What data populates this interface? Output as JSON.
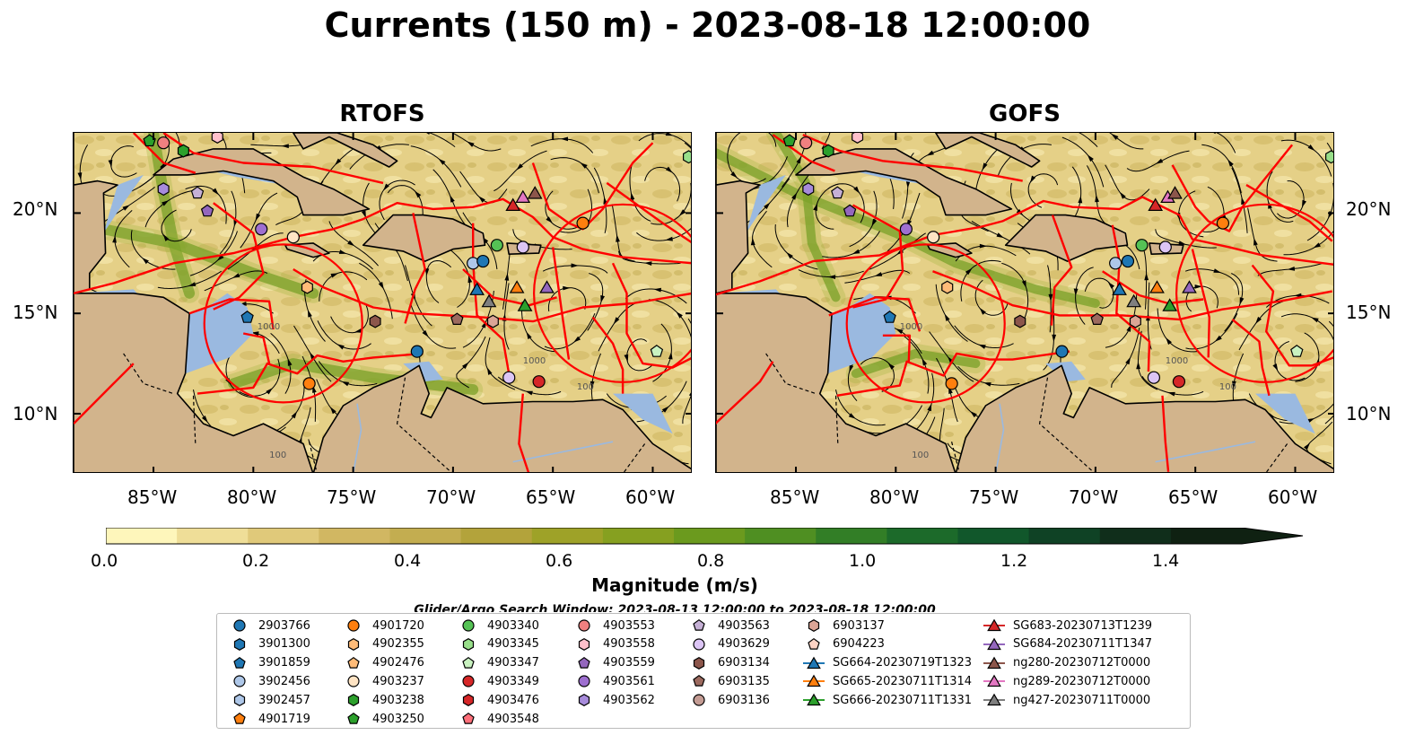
{
  "figure": {
    "title": "Currents (150 m) - 2023-08-18 12:00:00",
    "panels": [
      {
        "title": "RTOFS"
      },
      {
        "title": "GOFS"
      }
    ]
  },
  "map": {
    "lon_range": [
      -89,
      -58
    ],
    "lat_range": [
      7,
      24
    ],
    "lat_ticks": [
      "20°N",
      "15°N",
      "10°N"
    ],
    "lon_ticks": [
      "85°W",
      "80°W",
      "75°W",
      "70°W",
      "65°W",
      "60°W"
    ],
    "contour_labels": [
      "100",
      "1000"
    ],
    "colors": {
      "land": "#d2b48c",
      "shallow_sea": "#9ab9e0",
      "boundaries": "#ff0000",
      "streamlines": "#000000"
    }
  },
  "colorbar": {
    "title": "Magnitude (m/s)",
    "ticks": [
      "0.0",
      "0.2",
      "0.4",
      "0.6",
      "0.8",
      "1.0",
      "1.2",
      "1.4"
    ],
    "range": [
      0.0,
      1.5
    ],
    "extend": "max",
    "colors": [
      "#fef6bb",
      "#efde98",
      "#e0c97a",
      "#d1b762",
      "#c3ad50",
      "#b3a33b",
      "#9ea228",
      "#86a020",
      "#6b9a1e",
      "#4f8f22",
      "#327e26",
      "#1c6a2a",
      "#11572b",
      "#0f4225",
      "#102e1b",
      "#0f2112"
    ]
  },
  "search_window": "Glider/Argo Search Window: 2023-08-13 12:00:00 to 2023-08-18 12:00:00",
  "legend": [
    {
      "label": "2903766",
      "marker": "circle",
      "color": "#1f77b4"
    },
    {
      "label": "3901300",
      "marker": "hexagon",
      "color": "#1f77b4"
    },
    {
      "label": "3901859",
      "marker": "pentagon",
      "color": "#1f77b4"
    },
    {
      "label": "3902456",
      "marker": "circle",
      "color": "#aec7e8"
    },
    {
      "label": "3902457",
      "marker": "hexagon",
      "color": "#aec7e8"
    },
    {
      "label": "4901719",
      "marker": "pentagon",
      "color": "#ff7f0e"
    },
    {
      "label": "4901720",
      "marker": "circle",
      "color": "#ff7f0e"
    },
    {
      "label": "4902355",
      "marker": "hexagon",
      "color": "#ffbb78"
    },
    {
      "label": "4902476",
      "marker": "pentagon",
      "color": "#ffbb78"
    },
    {
      "label": "4903237",
      "marker": "circle",
      "color": "#ffe4c4"
    },
    {
      "label": "4903238",
      "marker": "hexagon",
      "color": "#2ca02c"
    },
    {
      "label": "4903250",
      "marker": "pentagon",
      "color": "#2ca02c"
    },
    {
      "label": "4903340",
      "marker": "circle",
      "color": "#55c255"
    },
    {
      "label": "4903345",
      "marker": "hexagon",
      "color": "#98df8a"
    },
    {
      "label": "4903347",
      "marker": "pentagon",
      "color": "#c9f2c0"
    },
    {
      "label": "4903349",
      "marker": "circle",
      "color": "#d62728"
    },
    {
      "label": "4903476",
      "marker": "hexagon",
      "color": "#d62728"
    },
    {
      "label": "4903548",
      "marker": "pentagon",
      "color": "#ff6f7a"
    },
    {
      "label": "4903553",
      "marker": "circle",
      "color": "#f08080"
    },
    {
      "label": "4903558",
      "marker": "hexagon",
      "color": "#ffc0cb"
    },
    {
      "label": "4903559",
      "marker": "pentagon",
      "color": "#9467bd"
    },
    {
      "label": "4903561",
      "marker": "circle",
      "color": "#9e6fd0"
    },
    {
      "label": "4903562",
      "marker": "hexagon",
      "color": "#a78bdb"
    },
    {
      "label": "4903563",
      "marker": "pentagon",
      "color": "#c5b0d5"
    },
    {
      "label": "4903629",
      "marker": "circle",
      "color": "#dcc5f5"
    },
    {
      "label": "6903134",
      "marker": "hexagon",
      "color": "#8c564b"
    },
    {
      "label": "6903135",
      "marker": "pentagon",
      "color": "#9c6a5f"
    },
    {
      "label": "6903136",
      "marker": "circle",
      "color": "#c49c94"
    },
    {
      "label": "6903137",
      "marker": "hexagon",
      "color": "#dba596"
    },
    {
      "label": "6904223",
      "marker": "pentagon",
      "color": "#ffd3c4"
    },
    {
      "label": "SG664-20230719T1323",
      "marker": "triangle",
      "color": "#1f77b4"
    },
    {
      "label": "SG665-20230711T1314",
      "marker": "triangle",
      "color": "#ff7f0e"
    },
    {
      "label": "SG666-20230711T1331",
      "marker": "triangle",
      "color": "#2ca02c"
    },
    {
      "label": "SG683-20230713T1239",
      "marker": "triangle",
      "color": "#d62728"
    },
    {
      "label": "SG684-20230711T1347",
      "marker": "triangle",
      "color": "#9467bd"
    },
    {
      "label": "ng280-20230712T0000",
      "marker": "triangle",
      "color": "#8c564b"
    },
    {
      "label": "ng289-20230712T0000",
      "marker": "triangle",
      "color": "#e377c2"
    },
    {
      "label": "ng427-20230711T0000",
      "marker": "triangle",
      "color": "#7f7f7f"
    }
  ],
  "markers": [
    {
      "id": "4903250",
      "lon": -85.2,
      "lat": 23.6
    },
    {
      "id": "4903553",
      "lon": -84.5,
      "lat": 23.5
    },
    {
      "id": "4903238",
      "lon": -83.5,
      "lat": 23.1
    },
    {
      "id": "4903558",
      "lon": -81.8,
      "lat": 23.8
    },
    {
      "id": "4903345",
      "lon": -58.2,
      "lat": 22.8
    },
    {
      "id": "4903562",
      "lon": -84.5,
      "lat": 21.2
    },
    {
      "id": "4903563",
      "lon": -82.8,
      "lat": 21.0
    },
    {
      "id": "4903559",
      "lon": -82.3,
      "lat": 20.1
    },
    {
      "id": "4903561",
      "lon": -79.6,
      "lat": 19.2
    },
    {
      "id": "4903237",
      "lon": -78.0,
      "lat": 18.8
    },
    {
      "id": "4903629",
      "lon": -66.5,
      "lat": 18.3
    },
    {
      "id": "4903340",
      "lon": -67.8,
      "lat": 18.4
    },
    {
      "id": "4901720",
      "lon": -63.5,
      "lat": 19.5
    },
    {
      "id": "3902456",
      "lon": -69.0,
      "lat": 17.5
    },
    {
      "id": "2903766",
      "lon": -68.5,
      "lat": 17.6
    },
    {
      "id": "4902355",
      "lon": -77.3,
      "lat": 16.3
    },
    {
      "id": "3901859",
      "lon": -80.3,
      "lat": 14.8
    },
    {
      "id": "6903134",
      "lon": -73.9,
      "lat": 14.6
    },
    {
      "id": "6903135",
      "lon": -69.8,
      "lat": 14.7
    },
    {
      "id": "6903137",
      "lon": -68.0,
      "lat": 14.6
    },
    {
      "id": "2903766",
      "lon": -71.8,
      "lat": 13.1
    },
    {
      "id": "4903347",
      "lon": -59.8,
      "lat": 13.1
    },
    {
      "id": "4901720",
      "lon": -77.2,
      "lat": 11.5
    },
    {
      "id": "4903629",
      "lon": -67.2,
      "lat": 11.8
    },
    {
      "id": "4903349",
      "lon": -65.7,
      "lat": 11.6
    },
    {
      "id": "SG683-20230713T1239",
      "lon": -67.0,
      "lat": 20.4
    },
    {
      "id": "ng289-20230712T0000",
      "lon": -66.5,
      "lat": 20.8
    },
    {
      "id": "ng280-20230712T0000",
      "lon": -65.9,
      "lat": 21.0
    },
    {
      "id": "SG664-20230719T1323",
      "lon": -68.8,
      "lat": 16.2
    },
    {
      "id": "ng427-20230711T0000",
      "lon": -68.2,
      "lat": 15.6
    },
    {
      "id": "SG665-20230711T1314",
      "lon": -66.8,
      "lat": 16.3
    },
    {
      "id": "SG684-20230711T1347",
      "lon": -65.3,
      "lat": 16.3
    },
    {
      "id": "SG666-20230711T1331",
      "lon": -66.4,
      "lat": 15.4
    }
  ]
}
